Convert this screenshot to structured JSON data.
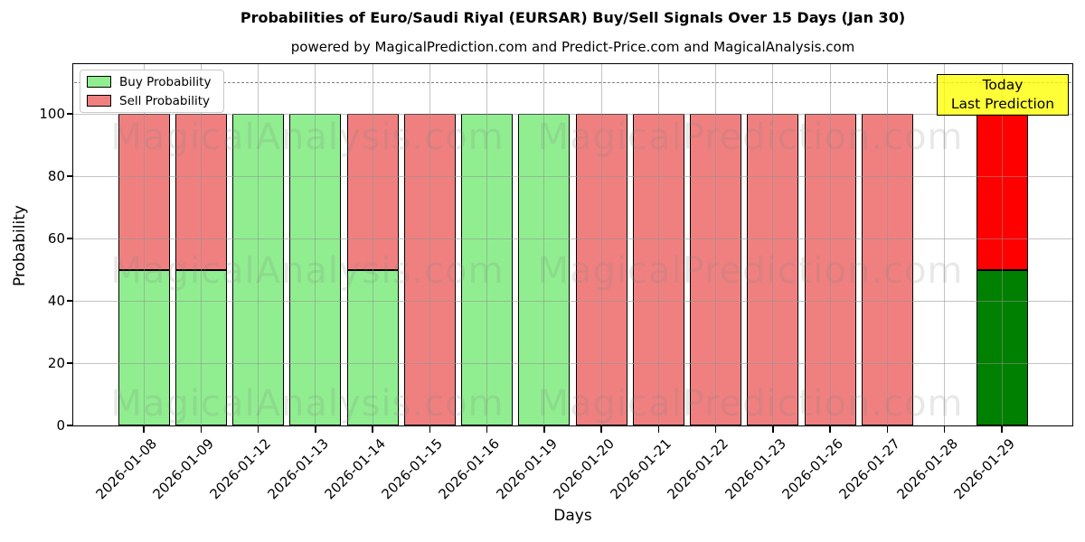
{
  "chart_data": {
    "type": "bar",
    "stacked": true,
    "title": "Probabilities of Euro/Saudi Riyal (EURSAR) Buy/Sell Signals Over 15 Days (Jan 30)",
    "subtitle": "powered by MagicalPrediction.com and Predict-Price.com and MagicalAnalysis.com",
    "xlabel": "Days",
    "ylabel": "Probability",
    "categories": [
      "2026-01-08",
      "2026-01-09",
      "2026-01-12",
      "2026-01-13",
      "2026-01-14",
      "2026-01-15",
      "2026-01-16",
      "2026-01-19",
      "2026-01-20",
      "2026-01-21",
      "2026-01-22",
      "2026-01-23",
      "2026-01-26",
      "2026-01-27",
      "2026-01-28",
      "2026-01-29"
    ],
    "series": [
      {
        "name": "Buy Probability",
        "color": "#90EE90",
        "values": [
          50,
          50,
          100,
          100,
          50,
          0,
          100,
          100,
          0,
          0,
          0,
          0,
          0,
          0,
          0,
          50
        ]
      },
      {
        "name": "Sell Probability",
        "color": "#F08080",
        "values": [
          50,
          50,
          0,
          0,
          50,
          100,
          0,
          0,
          100,
          100,
          100,
          100,
          100,
          100,
          0,
          50
        ]
      }
    ],
    "today": {
      "index": 15,
      "buy_color": "#008000",
      "sell_color": "#FF0000",
      "label_lines": [
        "Today",
        "Last Prediction"
      ],
      "label_bg": "#FFFF00"
    },
    "y_ticks": [
      0,
      20,
      40,
      60,
      80,
      100
    ],
    "ylim": [
      0,
      116
    ],
    "threshold_line": {
      "y": 110,
      "style": "dashed",
      "color": "#808080"
    },
    "grid": true,
    "legend_position": "upper left",
    "watermarks": [
      "MagicalAnalysis.com",
      "MagicalPrediction.com"
    ]
  }
}
